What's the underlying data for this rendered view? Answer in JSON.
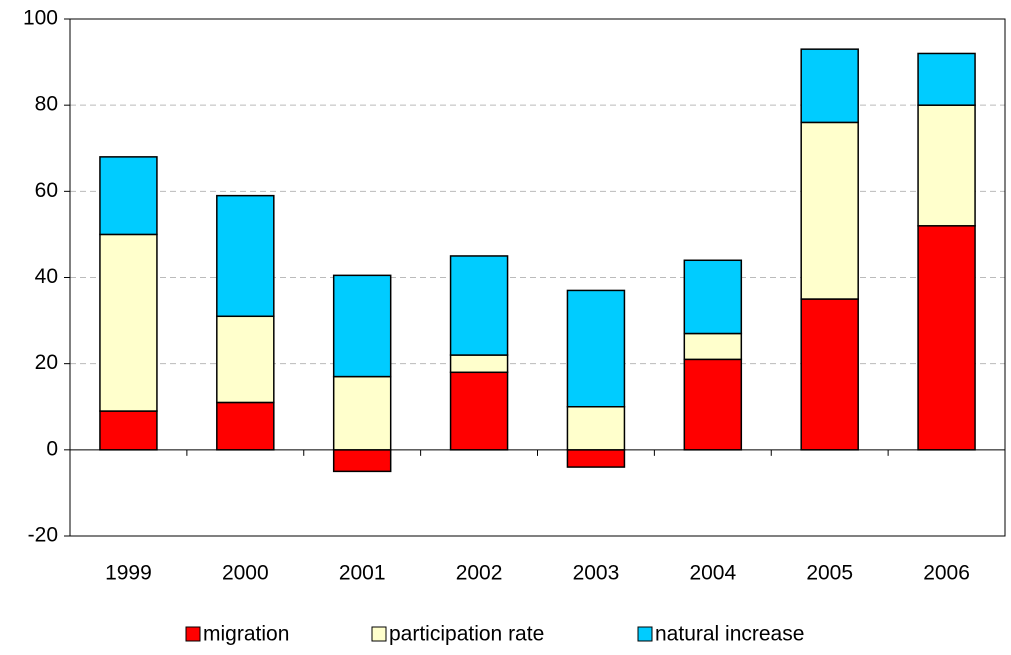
{
  "chart_data": {
    "type": "stacked_bar",
    "categories": [
      "1999",
      "2000",
      "2001",
      "2002",
      "2003",
      "2004",
      "2005",
      "2006"
    ],
    "series": [
      {
        "name": "migration",
        "color": "#ff0000",
        "values": [
          9,
          11,
          -5,
          18,
          -4,
          21,
          35,
          52
        ]
      },
      {
        "name": "participation rate",
        "color": "#ffffcc",
        "values": [
          41,
          20,
          17,
          4,
          10,
          6,
          41,
          28
        ]
      },
      {
        "name": "natural increase",
        "color": "#00ccff",
        "values": [
          18,
          28,
          23.5,
          23,
          27,
          17,
          17,
          12
        ]
      }
    ],
    "ylim": [
      -20,
      100
    ],
    "yticks": [
      -20,
      0,
      20,
      40,
      60,
      80,
      100
    ],
    "grid": true,
    "legend": "bottom"
  }
}
